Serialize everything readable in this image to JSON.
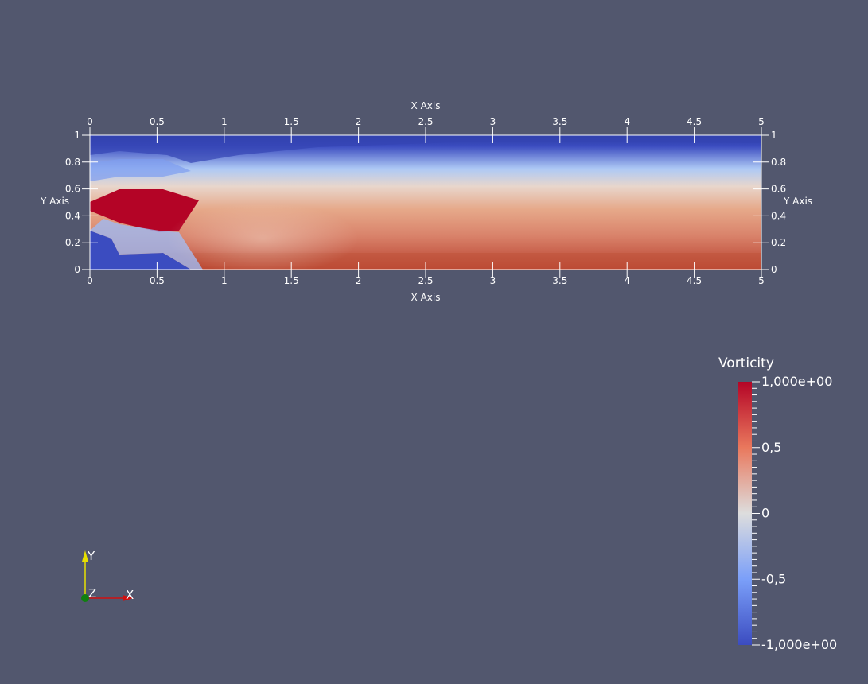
{
  "render_view": {
    "background": "#52576e",
    "field_name": "Vorticity",
    "colormap": "Cool to Warm",
    "colors": {
      "low": "#3b4cc0",
      "mid": "#dddddd",
      "high": "#b40426"
    }
  },
  "chart_data": {
    "type": "heatmap",
    "title": "",
    "xlabel": "X Axis",
    "ylabel": "Y Axis",
    "xlim": [
      0,
      5
    ],
    "ylim": [
      0,
      1
    ],
    "x_ticks": [
      "0",
      "0.5",
      "1",
      "1.5",
      "2",
      "2.5",
      "3",
      "3.5",
      "4",
      "4.5",
      "5"
    ],
    "y_ticks": [
      "0",
      "0.2",
      "0.4",
      "0.6",
      "0.8",
      "1"
    ],
    "x_tick_values": [
      0,
      0.5,
      1,
      1.5,
      2,
      2.5,
      3,
      3.5,
      4,
      4.5,
      5
    ],
    "y_tick_values": [
      0,
      0.2,
      0.4,
      0.6,
      0.8,
      1
    ],
    "grid": false,
    "colorbar": {
      "title": "Vorticity",
      "range": [
        -1,
        1
      ],
      "labels": [
        "1,000e+00",
        "0,5",
        "0",
        "-0,5",
        "-1,000e+00"
      ],
      "label_values": [
        1,
        0.5,
        0,
        -0.5,
        -1
      ],
      "placement": "bottom-right"
    }
  },
  "orientation_axes": {
    "x_label": "X",
    "y_label": "Y",
    "z_label": "Z"
  }
}
